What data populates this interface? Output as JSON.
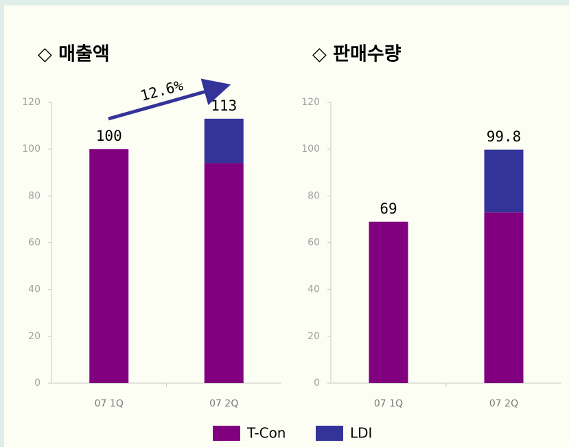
{
  "chart_data": [
    {
      "type": "stacked-bar",
      "title": "◇ 매출액",
      "annotation": "12.6%",
      "categories": [
        "07 1Q",
        "07 2Q"
      ],
      "series": [
        {
          "name": "T-Con",
          "color": "#800080",
          "values": [
            100,
            94
          ]
        },
        {
          "name": "LDI",
          "color": "#333399",
          "values": [
            0,
            19
          ]
        }
      ],
      "totals": [
        100,
        113
      ],
      "ylim": [
        0,
        120
      ],
      "yticks": [
        0,
        20,
        40,
        60,
        80,
        100,
        120
      ]
    },
    {
      "type": "stacked-bar",
      "title": "◇ 판매수량",
      "categories": [
        "07 1Q",
        "07 2Q"
      ],
      "series": [
        {
          "name": "T-Con",
          "color": "#800080",
          "values": [
            69,
            73
          ]
        },
        {
          "name": "LDI",
          "color": "#333399",
          "values": [
            0,
            26.8
          ]
        }
      ],
      "totals": [
        69,
        99.8
      ],
      "ylim": [
        0,
        120
      ],
      "yticks": [
        0,
        20,
        40,
        60,
        80,
        100,
        120
      ]
    }
  ]
}
